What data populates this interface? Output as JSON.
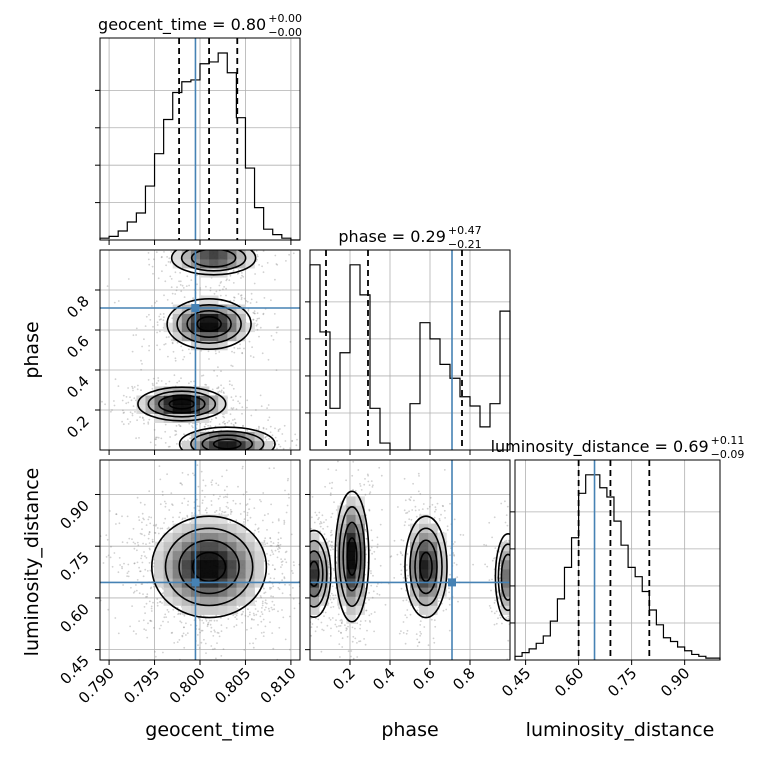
{
  "chart_data": {
    "type": "corner",
    "parameters": [
      "geocent_time",
      "phase",
      "luminosity_distance"
    ],
    "truths": {
      "geocent_time": 0.7995,
      "phase": 0.71,
      "luminosity_distance": 0.645
    },
    "panels": [
      {
        "id": "geocent_time-hist",
        "title_name": "geocent_time",
        "title_value": "0.80",
        "title_plus": "+0.00",
        "title_minus": "−0.00",
        "xlim": [
          0.789,
          0.811
        ],
        "quantiles": [
          0.7977,
          0.801,
          0.8041
        ],
        "truth": 0.7995,
        "bins": [
          0.789,
          0.79,
          0.791,
          0.792,
          0.793,
          0.794,
          0.795,
          0.796,
          0.797,
          0.798,
          0.799,
          0.8,
          0.801,
          0.802,
          0.803,
          0.804,
          0.805,
          0.806,
          0.807,
          0.808,
          0.809,
          0.81,
          0.811
        ],
        "counts": [
          1,
          2,
          5,
          10,
          15,
          30,
          48,
          67,
          82,
          88,
          89,
          98,
          99,
          104,
          93,
          68,
          40,
          18,
          6,
          3,
          1,
          0
        ]
      },
      {
        "id": "phase-hist",
        "title_name": "phase",
        "title_value": "0.29",
        "title_plus": "+0.47",
        "title_minus": "−0.21",
        "xlim": [
          0.0,
          1.0
        ],
        "quantiles": [
          0.08,
          0.29,
          0.76
        ],
        "truth": 0.71,
        "bins": [
          0.0,
          0.05,
          0.1,
          0.15,
          0.2,
          0.25,
          0.3,
          0.35,
          0.4,
          0.45,
          0.5,
          0.55,
          0.6,
          0.65,
          0.7,
          0.75,
          0.8,
          0.85,
          0.9,
          0.95,
          1.0
        ],
        "counts": [
          80,
          51,
          18,
          42,
          80,
          67,
          18,
          3,
          0,
          0,
          20,
          55,
          48,
          37,
          31,
          23,
          19,
          10,
          20,
          60
        ]
      },
      {
        "id": "luminosity_distance-hist",
        "title_name": "luminosity_distance",
        "title_value": "0.69",
        "title_plus": "+0.11",
        "title_minus": "−0.09",
        "xlim": [
          0.42,
          1.0
        ],
        "quantiles": [
          0.6,
          0.69,
          0.8
        ],
        "truth": 0.645,
        "bins": [
          0.42,
          0.44,
          0.46,
          0.48,
          0.5,
          0.52,
          0.54,
          0.56,
          0.58,
          0.6,
          0.62,
          0.64,
          0.66,
          0.68,
          0.7,
          0.72,
          0.74,
          0.76,
          0.78,
          0.8,
          0.82,
          0.84,
          0.86,
          0.88,
          0.9,
          0.92,
          0.94,
          0.96,
          0.98,
          1.0
        ],
        "counts": [
          2,
          4,
          6,
          9,
          13,
          21,
          33,
          50,
          66,
          90,
          100,
          100,
          93,
          88,
          75,
          62,
          50,
          45,
          37,
          27,
          19,
          12,
          10,
          7,
          5,
          3,
          2,
          1,
          1
        ]
      }
    ],
    "scatter_panels": [
      {
        "id": "phase-vs-geocent_time",
        "x": "geocent_time",
        "y": "phase",
        "xlim": [
          0.789,
          0.811
        ],
        "ylim": [
          0.0,
          1.0
        ],
        "modes": [
          {
            "x": 0.8015,
            "y": 0.96,
            "sx": 0.0022,
            "sy": 0.04,
            "w": 0.7
          },
          {
            "x": 0.801,
            "y": 0.63,
            "sx": 0.0022,
            "sy": 0.06,
            "w": 0.9
          },
          {
            "x": 0.798,
            "y": 0.23,
            "sx": 0.0023,
            "sy": 0.04,
            "w": 1.0
          },
          {
            "x": 0.803,
            "y": 0.03,
            "sx": 0.0025,
            "sy": 0.04,
            "w": 0.8
          }
        ]
      },
      {
        "id": "luminosity_distance-vs-geocent_time",
        "x": "geocent_time",
        "y": "luminosity_distance",
        "xlim": [
          0.789,
          0.811
        ],
        "ylim": [
          0.42,
          1.0
        ],
        "modes": [
          {
            "x": 0.801,
            "y": 0.69,
            "sx": 0.003,
            "sy": 0.07,
            "w": 1.0
          }
        ]
      },
      {
        "id": "luminosity_distance-vs-phase",
        "x": "phase",
        "y": "luminosity_distance",
        "xlim": [
          0.0,
          1.0
        ],
        "ylim": [
          0.42,
          1.0
        ],
        "modes": [
          {
            "x": 0.02,
            "y": 0.67,
            "sx": 0.04,
            "sy": 0.06,
            "w": 0.8
          },
          {
            "x": 0.21,
            "y": 0.72,
            "sx": 0.04,
            "sy": 0.09,
            "w": 1.0
          },
          {
            "x": 0.58,
            "y": 0.69,
            "sx": 0.05,
            "sy": 0.07,
            "w": 0.9
          },
          {
            "x": 0.99,
            "y": 0.66,
            "sx": 0.03,
            "sy": 0.06,
            "w": 0.6
          }
        ]
      }
    ],
    "ticks": {
      "geocent_time": {
        "values": [
          0.79,
          0.795,
          0.8,
          0.805,
          0.81
        ],
        "labels": [
          "0.790",
          "0.795",
          "0.800",
          "0.805",
          "0.810"
        ]
      },
      "phase_y": {
        "values": [
          0.2,
          0.4,
          0.6,
          0.8
        ],
        "labels": [
          "0.2",
          "0.4",
          "0.6",
          "0.8"
        ]
      },
      "phase_x": {
        "values": [
          0.2,
          0.4,
          0.6,
          0.8
        ],
        "labels": [
          "0.2",
          "0.4",
          "0.6",
          "0.8"
        ]
      },
      "luminosity_distance_y": {
        "values": [
          0.45,
          0.6,
          0.75,
          0.9
        ],
        "labels": [
          "0.45",
          "0.60",
          "0.75",
          "0.90"
        ]
      },
      "luminosity_distance_x": {
        "values": [
          0.45,
          0.6,
          0.75,
          0.9
        ],
        "labels": [
          "0.45",
          "0.60",
          "0.75",
          "0.90"
        ]
      }
    },
    "axis_labels": {
      "x": [
        "geocent_time",
        "phase",
        "luminosity_distance"
      ],
      "y": [
        "phase",
        "luminosity_distance"
      ]
    },
    "grid": true,
    "colors": {
      "truth": "#4682b4",
      "contour": "#000000",
      "scatter": "#888888"
    }
  }
}
